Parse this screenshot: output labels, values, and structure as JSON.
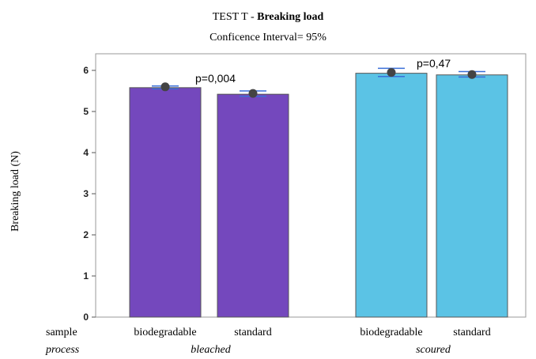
{
  "chart_data": {
    "type": "bar",
    "title_prefix": "TEST T - ",
    "title_bold": "Breaking load",
    "subtitle": "Conficence Interval= 95%",
    "ylabel": "Breaking load (N)",
    "ylim": [
      0,
      6.3
    ],
    "yticks": [
      "0",
      "1",
      "2",
      "3",
      "4",
      "5",
      "6"
    ],
    "row_labels": {
      "sample": "sample",
      "process": "process"
    },
    "groups": [
      {
        "process": "bleached",
        "color": "#7448bd",
        "pvalue": "p=0,004",
        "bars": [
          {
            "sample": "biodegradable",
            "value": 5.58,
            "mean": 5.6,
            "ci": [
              5.55,
              5.62
            ]
          },
          {
            "sample": "standard",
            "value": 5.42,
            "mean": 5.44,
            "ci": [
              5.37,
              5.5
            ]
          }
        ]
      },
      {
        "process": "scoured",
        "color": "#5bc3e5",
        "pvalue": "p=0,47",
        "bars": [
          {
            "sample": "biodegradable",
            "value": 5.93,
            "mean": 5.95,
            "ci": [
              5.85,
              6.05
            ]
          },
          {
            "sample": "standard",
            "value": 5.89,
            "mean": 5.9,
            "ci": [
              5.84,
              5.97
            ]
          }
        ]
      }
    ],
    "colors": {
      "errorbar": "#3a6fd8",
      "point": "#444444",
      "frame": "#9a9a9a"
    }
  }
}
